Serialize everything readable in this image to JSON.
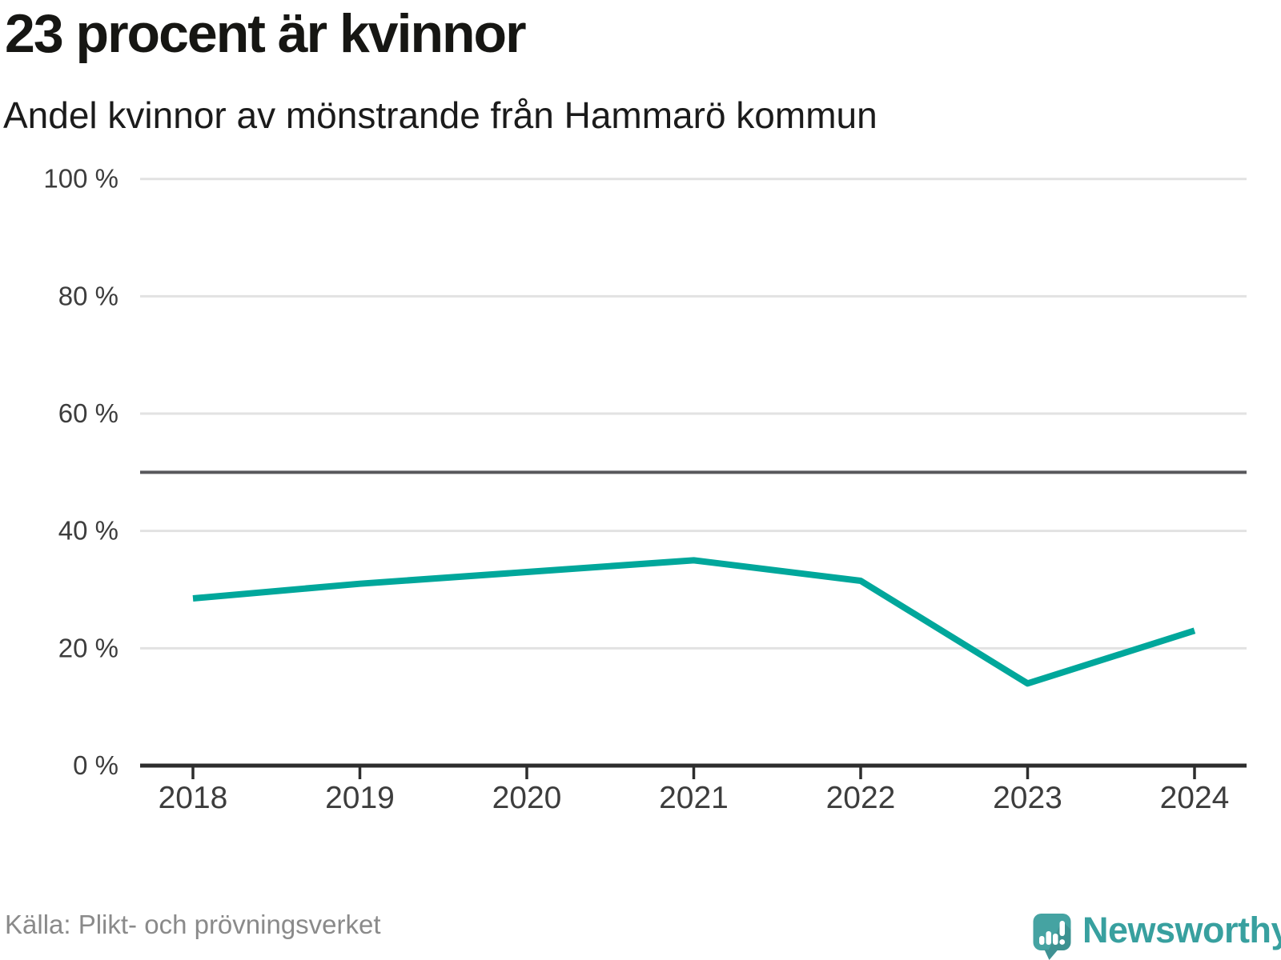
{
  "header": {
    "title": "23 procent är kvinnor",
    "subtitle": "Andel kvinnor av mönstrande från Hammarö kommun"
  },
  "chart_data": {
    "type": "line",
    "x": [
      2018,
      2019,
      2020,
      2021,
      2022,
      2023,
      2024
    ],
    "series": [
      {
        "name": "Andel kvinnor av mönstrande",
        "values": [
          28.5,
          31,
          33,
          35,
          31.5,
          14,
          23
        ]
      }
    ],
    "title": "23 procent är kvinnor",
    "subtitle": "Andel kvinnor av mönstrande från Hammarö kommun",
    "xlabel": "",
    "ylabel": "",
    "ylim": [
      0,
      100
    ],
    "yticks": [
      0,
      20,
      40,
      60,
      80,
      100
    ],
    "ytick_suffix": " %",
    "reference_line": 50,
    "grid": true,
    "legend_position": "none"
  },
  "footer": {
    "source": "Källa: Plikt- och prövningsverket",
    "brand": "Newsworthy"
  },
  "colors": {
    "line": "#00a79b",
    "grid": "#e2e2e2",
    "reference_line": "#58585c",
    "axis": "#2d2d2d",
    "axis_label": "#3d3d3d",
    "title": "#161613",
    "subtitle": "#1b1b1b",
    "source": "#8a8a8a",
    "logo_teal": "#45a3a2",
    "logo_tail": "#3f9193",
    "brand_text": "#38a09f"
  }
}
